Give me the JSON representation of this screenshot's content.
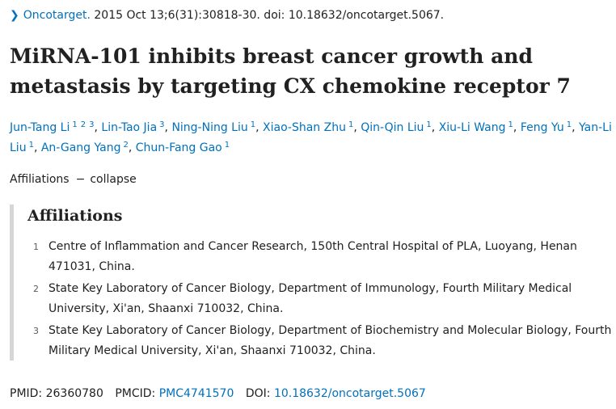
{
  "citation": {
    "journal": "Oncotarget.",
    "details": "2015 Oct 13;6(31):30818-30. doi: 10.18632/oncotarget.5067."
  },
  "title": "MiRNA-101 inhibits breast cancer growth and metastasis by targeting CX chemokine receptor 7",
  "authors": [
    {
      "name": "Jun-Tang Li",
      "affs": [
        "1",
        "2",
        "3"
      ]
    },
    {
      "name": "Lin-Tao Jia",
      "affs": [
        "3"
      ]
    },
    {
      "name": "Ning-Ning Liu",
      "affs": [
        "1"
      ]
    },
    {
      "name": "Xiao-Shan Zhu",
      "affs": [
        "1"
      ]
    },
    {
      "name": "Qin-Qin Liu",
      "affs": [
        "1"
      ]
    },
    {
      "name": "Xiu-Li Wang",
      "affs": [
        "1"
      ]
    },
    {
      "name": "Feng Yu",
      "affs": [
        "1"
      ]
    },
    {
      "name": "Yan-Li Liu",
      "affs": [
        "1"
      ]
    },
    {
      "name": "An-Gang Yang",
      "affs": [
        "2"
      ]
    },
    {
      "name": "Chun-Fang Gao",
      "affs": [
        "1"
      ]
    }
  ],
  "affiliations_toggle": {
    "label": "Affiliations",
    "dash": "−",
    "action": "collapse"
  },
  "affiliations": {
    "heading": "Affiliations",
    "items": [
      {
        "num": "1",
        "text": "Centre of Inflammation and Cancer Research, 150th Central Hospital of PLA, Luoyang, Henan 471031, China."
      },
      {
        "num": "2",
        "text": "State Key Laboratory of Cancer Biology, Department of Immunology, Fourth Military Medical University, Xi'an, Shaanxi 710032, China."
      },
      {
        "num": "3",
        "text": "State Key Laboratory of Cancer Biology, Department of Biochemistry and Molecular Biology, Fourth Military Medical University, Xi'an, Shaanxi 710032, China."
      }
    ]
  },
  "identifiers": {
    "pmid_label": "PMID:",
    "pmid": "26360780",
    "pmcid_label": "PMCID:",
    "pmcid": "PMC4741570",
    "doi_label": "DOI:",
    "doi": "10.18632/oncotarget.5067"
  },
  "colors": {
    "link": "#0071bc",
    "text": "#212121",
    "border": "#d6d6d6"
  }
}
